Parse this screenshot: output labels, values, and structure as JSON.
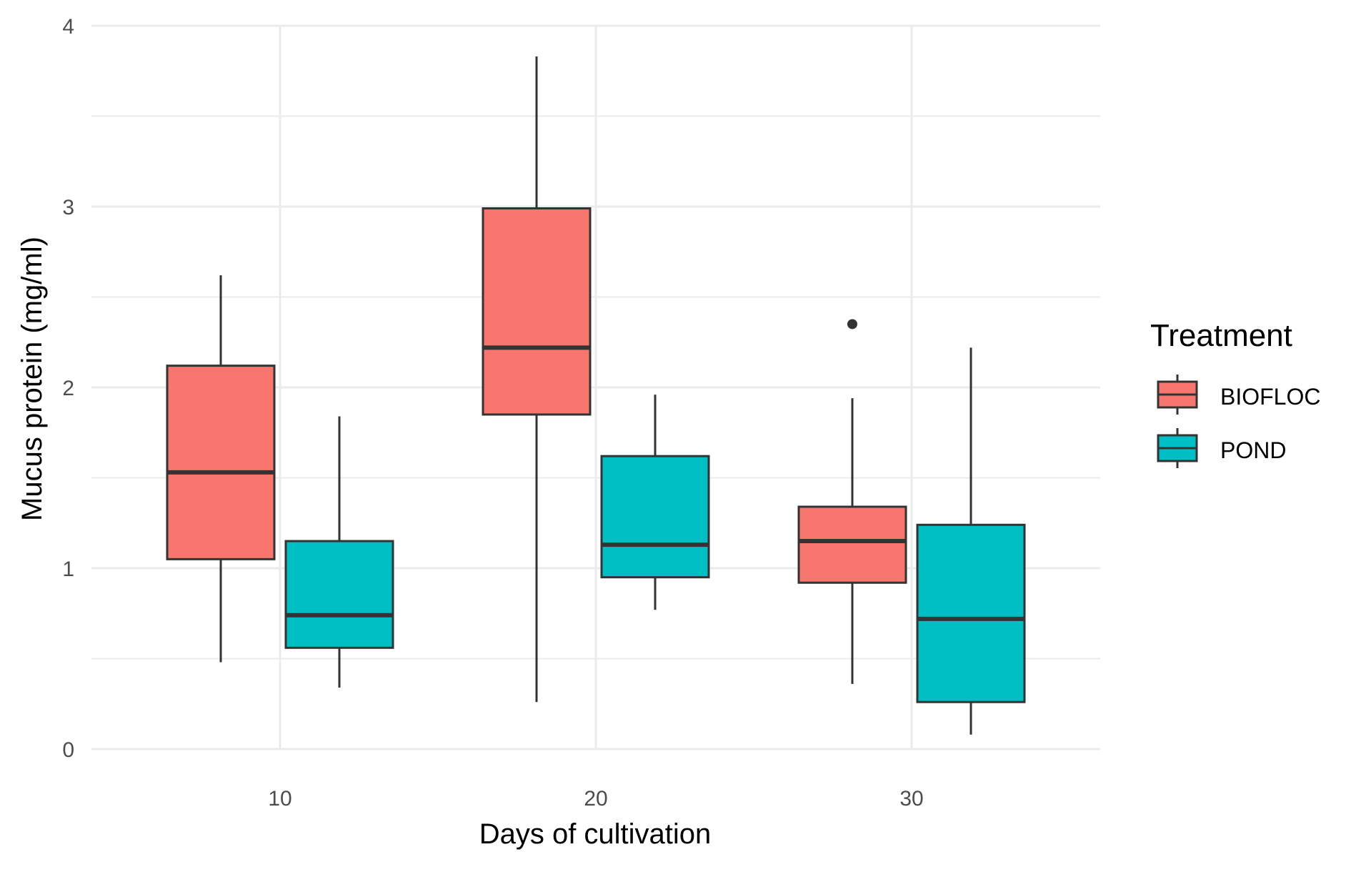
{
  "chart_data": {
    "type": "boxplot",
    "title": "",
    "xlabel": "Days of cultivation",
    "ylabel": "Mucus protein (mg/ml)",
    "categories": [
      "10",
      "20",
      "30"
    ],
    "ylim": [
      0,
      4
    ],
    "yticks": [
      "0",
      "1",
      "2",
      "3",
      "4"
    ],
    "grid": true,
    "legend": {
      "title": "Treatment",
      "position": "right",
      "entries": [
        "BIOFLOC",
        "POND"
      ]
    },
    "series": [
      {
        "name": "BIOFLOC",
        "color": "#F8766D",
        "boxes": [
          {
            "category": "10",
            "min": 0.48,
            "q1": 1.05,
            "median": 1.53,
            "q3": 2.12,
            "max": 2.62,
            "outliers": []
          },
          {
            "category": "20",
            "min": 0.26,
            "q1": 1.85,
            "median": 2.22,
            "q3": 2.99,
            "max": 3.83,
            "outliers": []
          },
          {
            "category": "30",
            "min": 0.36,
            "q1": 0.92,
            "median": 1.15,
            "q3": 1.34,
            "max": 1.94,
            "outliers": [
              2.35
            ]
          }
        ]
      },
      {
        "name": "POND",
        "color": "#00BFC4",
        "boxes": [
          {
            "category": "10",
            "min": 0.34,
            "q1": 0.56,
            "median": 0.74,
            "q3": 1.15,
            "max": 1.84,
            "outliers": []
          },
          {
            "category": "20",
            "min": 0.77,
            "q1": 0.95,
            "median": 1.13,
            "q3": 1.62,
            "max": 1.96,
            "outliers": []
          },
          {
            "category": "30",
            "min": 0.08,
            "q1": 0.26,
            "median": 0.72,
            "q3": 1.24,
            "max": 2.22,
            "outliers": []
          }
        ]
      }
    ]
  }
}
